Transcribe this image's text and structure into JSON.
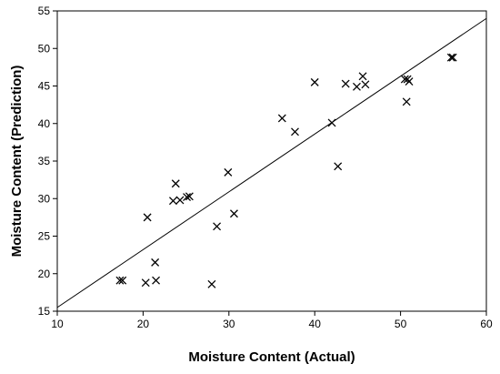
{
  "chart_data": {
    "type": "scatter",
    "xlabel": "Moisture Content (Actual)",
    "ylabel": "Moisture Content (Prediction)",
    "xlim": [
      10,
      60
    ],
    "ylim": [
      15,
      55
    ],
    "x_ticks": [
      10,
      20,
      30,
      40,
      50,
      60
    ],
    "y_ticks": [
      15,
      20,
      25,
      30,
      35,
      40,
      45,
      50,
      55
    ],
    "grid": false,
    "marker": "x",
    "points": [
      [
        17.3,
        19.1
      ],
      [
        17.6,
        19.1
      ],
      [
        20.3,
        18.8
      ],
      [
        21.5,
        19.1
      ],
      [
        21.4,
        21.5
      ],
      [
        20.5,
        27.5
      ],
      [
        23.5,
        29.7
      ],
      [
        24.3,
        29.8
      ],
      [
        23.8,
        32.0
      ],
      [
        25.1,
        30.2
      ],
      [
        25.4,
        30.3
      ],
      [
        28.0,
        18.6
      ],
      [
        28.6,
        26.3
      ],
      [
        29.9,
        33.5
      ],
      [
        30.6,
        28.0
      ],
      [
        36.2,
        40.7
      ],
      [
        37.7,
        38.9
      ],
      [
        40.0,
        45.5
      ],
      [
        42.0,
        40.1
      ],
      [
        42.7,
        34.3
      ],
      [
        43.6,
        45.3
      ],
      [
        44.9,
        44.9
      ],
      [
        45.6,
        46.3
      ],
      [
        45.9,
        45.2
      ],
      [
        50.5,
        45.9
      ],
      [
        50.8,
        45.9
      ],
      [
        51.0,
        45.6
      ],
      [
        50.7,
        42.9
      ],
      [
        55.9,
        48.8
      ],
      [
        56.1,
        48.8
      ]
    ],
    "fit_line": {
      "x": [
        10,
        60
      ],
      "y": [
        15.5,
        54.0
      ]
    }
  }
}
